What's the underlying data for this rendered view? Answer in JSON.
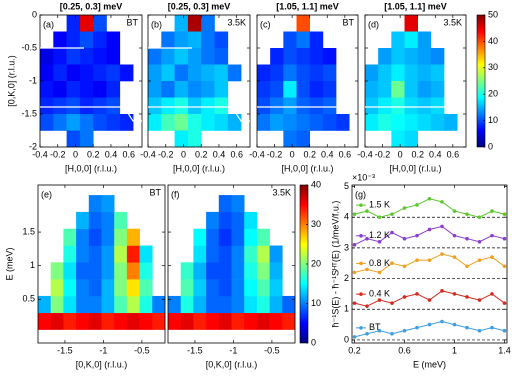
{
  "chart_data": [
    {
      "type": "heatmap",
      "title": "[0.25, 0.3] meV",
      "label": "(a)",
      "tag": "BT",
      "xlabel": "[H,0,0] (r.l.u.)",
      "ylabel": "[0,K,0] (r.l.u.)",
      "xlim": [
        -0.4,
        0.75
      ],
      "ylim": [
        -2,
        0
      ],
      "xticks": [
        -0.4,
        -0.2,
        0,
        0.2,
        0.4,
        0.6
      ],
      "yticks": [
        0,
        -0.5,
        -1,
        -1.5,
        -2
      ],
      "show_ytick_labels": true,
      "colormap": "jet",
      "clim": [
        0,
        50
      ],
      "xbins": [
        -0.4,
        -0.25,
        -0.1,
        0.05,
        0.2,
        0.35,
        0.5,
        0.65
      ],
      "ybins": [
        0,
        -0.25,
        -0.5,
        -0.75,
        -1,
        -1.25,
        -1.5,
        -1.75,
        -2
      ],
      "values": [
        [
          null,
          null,
          8,
          45,
          10,
          null,
          null
        ],
        [
          null,
          6,
          8,
          10,
          8,
          6,
          null
        ],
        [
          5,
          7,
          9,
          8,
          7,
          6,
          null
        ],
        [
          6,
          8,
          6,
          7,
          8,
          9,
          7
        ],
        [
          7,
          6,
          8,
          7,
          6,
          8,
          null
        ],
        [
          8,
          9,
          10,
          8,
          9,
          10,
          null
        ],
        [
          10,
          12,
          14,
          12,
          10,
          9,
          8
        ],
        [
          null,
          null,
          10,
          12,
          null,
          null,
          null
        ]
      ]
    },
    {
      "type": "heatmap",
      "title": "[0.25, 0.3] meV",
      "label": "(b)",
      "tag": "3.5K",
      "xlabel": "[H,0,0] (r.l.u.)",
      "xlim": [
        -0.4,
        0.75
      ],
      "ylim": [
        -2,
        0
      ],
      "xticks": [
        -0.4,
        -0.2,
        0,
        0.2,
        0.4,
        0.6
      ],
      "yticks": [
        0,
        -0.5,
        -1,
        -1.5,
        -2
      ],
      "show_ytick_labels": false,
      "colormap": "jet",
      "clim": [
        0,
        50
      ],
      "xbins": [
        -0.4,
        -0.25,
        -0.1,
        0.05,
        0.2,
        0.35,
        0.5,
        0.65
      ],
      "ybins": [
        0,
        -0.25,
        -0.5,
        -0.75,
        -1,
        -1.25,
        -1.5,
        -1.75,
        -2
      ],
      "values": [
        [
          null,
          null,
          15,
          48,
          12,
          null,
          null
        ],
        [
          null,
          12,
          14,
          15,
          12,
          10,
          null
        ],
        [
          12,
          14,
          16,
          14,
          12,
          11,
          null
        ],
        [
          14,
          16,
          12,
          14,
          15,
          16,
          12
        ],
        [
          14,
          12,
          15,
          13,
          14,
          16,
          null
        ],
        [
          16,
          18,
          20,
          16,
          18,
          20,
          null
        ],
        [
          18,
          22,
          24,
          20,
          18,
          17,
          15
        ],
        [
          null,
          null,
          18,
          20,
          null,
          null,
          null
        ]
      ]
    },
    {
      "type": "heatmap",
      "title": "[1.05, 1.1] meV",
      "label": "(c)",
      "tag": "BT",
      "xlabel": "[H,0,0] (r.l.u.)",
      "xlim": [
        -0.4,
        0.75
      ],
      "ylim": [
        -2,
        0
      ],
      "xticks": [
        -0.4,
        -0.2,
        0,
        0.2,
        0.4,
        0.6
      ],
      "yticks": [
        0,
        -0.5,
        -1,
        -1.5,
        -2
      ],
      "show_ytick_labels": false,
      "colormap": "jet",
      "clim": [
        0,
        50
      ],
      "xbins": [
        -0.4,
        -0.25,
        -0.1,
        0.05,
        0.2,
        0.35,
        0.5,
        0.65
      ],
      "ybins": [
        0,
        -0.25,
        -0.5,
        -0.75,
        -1,
        -1.25,
        -1.5,
        -1.75,
        -2
      ],
      "values": [
        [
          null,
          null,
          null,
          40,
          null,
          null,
          null
        ],
        [
          null,
          null,
          10,
          12,
          8,
          null,
          null
        ],
        [
          null,
          8,
          10,
          9,
          8,
          7,
          null
        ],
        [
          8,
          9,
          12,
          10,
          9,
          10,
          null
        ],
        [
          9,
          10,
          18,
          10,
          8,
          9,
          null
        ],
        [
          10,
          12,
          14,
          11,
          10,
          11,
          null
        ],
        [
          12,
          14,
          13,
          12,
          11,
          10,
          9
        ],
        [
          null,
          null,
          12,
          11,
          null,
          null,
          null
        ]
      ]
    },
    {
      "type": "heatmap",
      "title": "[1.05, 1.1] meV",
      "label": "(d)",
      "tag": "3.5K",
      "xlabel": "[H,0,0] (r.l.u.)",
      "xlim": [
        -0.4,
        0.75
      ],
      "ylim": [
        -2,
        0
      ],
      "xticks": [
        -0.4,
        -0.2,
        0,
        0.2,
        0.4,
        0.6
      ],
      "yticks": [
        0,
        -0.5,
        -1,
        -1.5,
        -2
      ],
      "show_ytick_labels": false,
      "colormap": "jet",
      "clim": [
        0,
        50
      ],
      "xbins": [
        -0.4,
        -0.25,
        -0.1,
        0.05,
        0.2,
        0.35,
        0.5,
        0.65
      ],
      "ybins": [
        0,
        -0.25,
        -0.5,
        -0.75,
        -1,
        -1.25,
        -1.5,
        -1.75,
        -2
      ],
      "values": [
        [
          null,
          null,
          null,
          45,
          null,
          null,
          null
        ],
        [
          null,
          null,
          16,
          18,
          14,
          null,
          null
        ],
        [
          null,
          14,
          16,
          15,
          14,
          13,
          null
        ],
        [
          14,
          16,
          18,
          16,
          15,
          16,
          null
        ],
        [
          15,
          16,
          24,
          16,
          14,
          15,
          null
        ],
        [
          16,
          18,
          20,
          17,
          16,
          17,
          null
        ],
        [
          18,
          20,
          19,
          18,
          17,
          16,
          15
        ],
        [
          null,
          null,
          18,
          17,
          null,
          null,
          null
        ]
      ]
    },
    {
      "type": "colorbar",
      "colormap": "jet",
      "ylim": [
        0,
        50
      ],
      "yticks": [
        0,
        10,
        20,
        30,
        40,
        50
      ]
    },
    {
      "type": "heatmap",
      "label": "(e)",
      "tag": "BT",
      "xlabel": "[0,K,0] (r.l.u.)",
      "ylabel": "E (meV)",
      "xlim": [
        -1.85,
        -0.2
      ],
      "ylim": [
        -0.15,
        2.2
      ],
      "xticks": [
        -1.5,
        -1,
        -0.5
      ],
      "yticks": [
        0.5,
        1,
        1.5
      ],
      "show_ytick_labels": true,
      "colormap": "jet",
      "clim": [
        0,
        40
      ],
      "xbins": [
        -1.85,
        -1.685,
        -1.52,
        -1.355,
        -1.19,
        -1.025,
        -0.86,
        -0.695,
        -0.53,
        -0.365,
        -0.2
      ],
      "ybins": [
        0.05,
        0.3,
        0.55,
        0.8,
        1.05,
        1.3,
        1.55,
        1.8,
        2.05
      ],
      "values": [
        [
          35,
          36,
          34,
          35,
          36,
          34,
          35,
          36,
          35,
          34
        ],
        [
          12,
          20,
          14,
          10,
          10,
          12,
          18,
          22,
          16,
          10
        ],
        [
          null,
          22,
          15,
          10,
          9,
          12,
          20,
          26,
          18,
          null
        ],
        [
          null,
          20,
          14,
          9,
          9,
          11,
          20,
          30,
          16,
          null
        ],
        [
          null,
          null,
          16,
          10,
          9,
          11,
          22,
          34,
          14,
          null
        ],
        [
          null,
          null,
          18,
          10,
          8,
          10,
          20,
          28,
          null,
          null
        ],
        [
          null,
          null,
          null,
          12,
          9,
          10,
          18,
          null,
          null,
          null
        ],
        [
          null,
          null,
          null,
          null,
          10,
          11,
          null,
          null,
          null,
          null
        ]
      ]
    },
    {
      "type": "heatmap",
      "label": "(f)",
      "tag": "3.5K",
      "xlabel": "[0,K,0] (r.l.u.)",
      "xlim": [
        -1.85,
        -0.2
      ],
      "ylim": [
        -0.15,
        2.2
      ],
      "xticks": [
        -1.5,
        -1,
        -0.5
      ],
      "yticks": [
        0.5,
        1,
        1.5
      ],
      "show_ytick_labels": false,
      "colormap": "jet",
      "clim": [
        0,
        40
      ],
      "xbins": [
        -1.85,
        -1.685,
        -1.52,
        -1.355,
        -1.19,
        -1.025,
        -0.86,
        -0.695,
        -0.53,
        -0.365,
        -0.2
      ],
      "ybins": [
        0.05,
        0.3,
        0.55,
        0.8,
        1.05,
        1.3,
        1.55,
        1.8,
        2.05
      ],
      "values": [
        [
          35,
          36,
          34,
          35,
          36,
          34,
          35,
          36,
          35,
          34
        ],
        [
          10,
          16,
          12,
          9,
          9,
          10,
          14,
          16,
          12,
          9
        ],
        [
          null,
          18,
          13,
          9,
          8,
          10,
          15,
          18,
          13,
          null
        ],
        [
          null,
          17,
          12,
          8,
          8,
          10,
          16,
          20,
          12,
          null
        ],
        [
          null,
          null,
          14,
          9,
          8,
          10,
          17,
          22,
          11,
          null
        ],
        [
          null,
          null,
          15,
          9,
          7,
          9,
          15,
          18,
          null,
          null
        ],
        [
          null,
          null,
          null,
          10,
          8,
          9,
          14,
          null,
          null,
          null
        ],
        [
          null,
          null,
          null,
          null,
          9,
          10,
          null,
          null,
          null,
          null
        ]
      ]
    },
    {
      "type": "colorbar",
      "colormap": "jet",
      "ylim": [
        0,
        40
      ],
      "yticks": [
        0,
        10,
        20,
        30,
        40
      ]
    },
    {
      "type": "line",
      "label": "(g)",
      "xlabel": "E (meV)",
      "ylabel": "ħ⁻¹S(E) - ħ⁻¹Sᴴᵀ(E) (1/meV/f.u.)",
      "y_multiplier": "×10⁻³",
      "xlim": [
        0.18,
        1.42
      ],
      "ylim": [
        -0.1,
        5.05
      ],
      "xticks": [
        0.2,
        0.6,
        1,
        1.4
      ],
      "yticks": [
        0,
        1,
        2,
        3,
        4,
        5
      ],
      "show_ytick_labels": true,
      "reference_lines": [
        0,
        1,
        2,
        3,
        4
      ],
      "x": [
        0.2,
        0.3,
        0.4,
        0.5,
        0.6,
        0.7,
        0.8,
        0.9,
        1.0,
        1.1,
        1.2,
        1.3,
        1.4
      ],
      "series": [
        {
          "name": "1.5 K",
          "color": "#5cc82e",
          "values": [
            4.1,
            4.2,
            4.0,
            4.1,
            4.3,
            4.4,
            4.6,
            4.5,
            4.2,
            4.1,
            4.0,
            4.2,
            4.1
          ]
        },
        {
          "name": "1.2 K",
          "color": "#8a3fd0",
          "values": [
            3.1,
            3.3,
            3.2,
            3.5,
            3.3,
            3.4,
            3.6,
            3.7,
            3.4,
            3.3,
            3.2,
            3.4,
            3.3
          ]
        },
        {
          "name": "0.8 K",
          "color": "#f0a020",
          "values": [
            2.2,
            2.3,
            2.2,
            2.5,
            2.4,
            2.6,
            2.6,
            2.8,
            2.7,
            2.4,
            2.6,
            2.7,
            2.4
          ]
        },
        {
          "name": "0.4 K",
          "color": "#d42a20",
          "values": [
            1.2,
            1.1,
            1.3,
            1.2,
            1.4,
            1.5,
            1.3,
            1.6,
            1.5,
            1.4,
            1.3,
            1.5,
            1.2
          ]
        },
        {
          "name": "BT",
          "color": "#3d9ee0",
          "values": [
            0.1,
            0.2,
            0.3,
            0.2,
            0.3,
            0.4,
            0.5,
            0.6,
            0.5,
            0.4,
            0.3,
            0.4,
            0.3
          ]
        }
      ]
    }
  ]
}
